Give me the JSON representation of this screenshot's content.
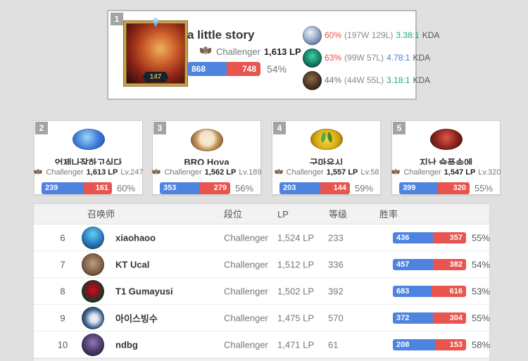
{
  "colors": {
    "win_blue": "#4e83e0",
    "loss_red": "#e8544e",
    "winrate_red": "#e0534c",
    "kda_teal": "#22a38b",
    "kda_blue": "#4b7fd6",
    "muted_gray": "#757575"
  },
  "top_player": {
    "rank": "1",
    "name": "a little story",
    "level": "147",
    "tier": "Challenger",
    "lp": "1,613 LP",
    "wins": "868",
    "losses": "748",
    "win_rate": "54%",
    "champions": [
      {
        "win_rate": "60%",
        "record": "(197W 129L)",
        "kda": "3.38:1",
        "kda_label": "KDA",
        "rate_color": "red",
        "kda_color": "teal"
      },
      {
        "win_rate": "63%",
        "record": "(99W 57L)",
        "kda": "4.78:1",
        "kda_label": "KDA",
        "rate_color": "red",
        "kda_color": "blue"
      },
      {
        "win_rate": "44%",
        "record": "(44W 55L)",
        "kda": "3.18:1",
        "kda_label": "KDA",
        "rate_color": "gray",
        "kda_color": "teal"
      }
    ]
  },
  "top_cards": [
    {
      "rank": "2",
      "name": "언제나잘하고싶다",
      "tier": "Challenger",
      "lp": "1,613 LP",
      "level": "Lv.247",
      "wins": "239",
      "losses": "161",
      "win_rate": "60%"
    },
    {
      "rank": "3",
      "name": "BRO Hoya",
      "tier": "Challenger",
      "lp": "1,562 LP",
      "level": "Lv.189",
      "wins": "353",
      "losses": "279",
      "win_rate": "56%"
    },
    {
      "rank": "4",
      "name": "구마유시",
      "tier": "Challenger",
      "lp": "1,557 LP",
      "level": "Lv.58",
      "wins": "203",
      "losses": "144",
      "win_rate": "59%"
    },
    {
      "rank": "5",
      "name": "지난 슬픔속에",
      "tier": "Challenger",
      "lp": "1,547 LP",
      "level": "Lv.320",
      "wins": "399",
      "losses": "320",
      "win_rate": "55%"
    }
  ],
  "table": {
    "headers": {
      "summoner": "召唤师",
      "tier": "段位",
      "lp": "LP",
      "level": "等级",
      "win_rate": "胜率"
    },
    "rows": [
      {
        "rank": "6",
        "name": "xiaohaoo",
        "tier": "Challenger",
        "lp": "1,524 LP",
        "level": "233",
        "wins": "436",
        "losses": "357",
        "win_rate": "55%"
      },
      {
        "rank": "7",
        "name": "KT Ucal",
        "tier": "Challenger",
        "lp": "1,512 LP",
        "level": "336",
        "wins": "457",
        "losses": "382",
        "win_rate": "54%"
      },
      {
        "rank": "8",
        "name": "T1 Gumayusi",
        "tier": "Challenger",
        "lp": "1,502 LP",
        "level": "392",
        "wins": "683",
        "losses": "616",
        "win_rate": "53%"
      },
      {
        "rank": "9",
        "name": "아이스빙수",
        "tier": "Challenger",
        "lp": "1,475 LP",
        "level": "570",
        "wins": "372",
        "losses": "304",
        "win_rate": "55%"
      },
      {
        "rank": "10",
        "name": "ndbg",
        "tier": "Challenger",
        "lp": "1,471 LP",
        "level": "61",
        "wins": "208",
        "losses": "153",
        "win_rate": "58%"
      }
    ]
  }
}
